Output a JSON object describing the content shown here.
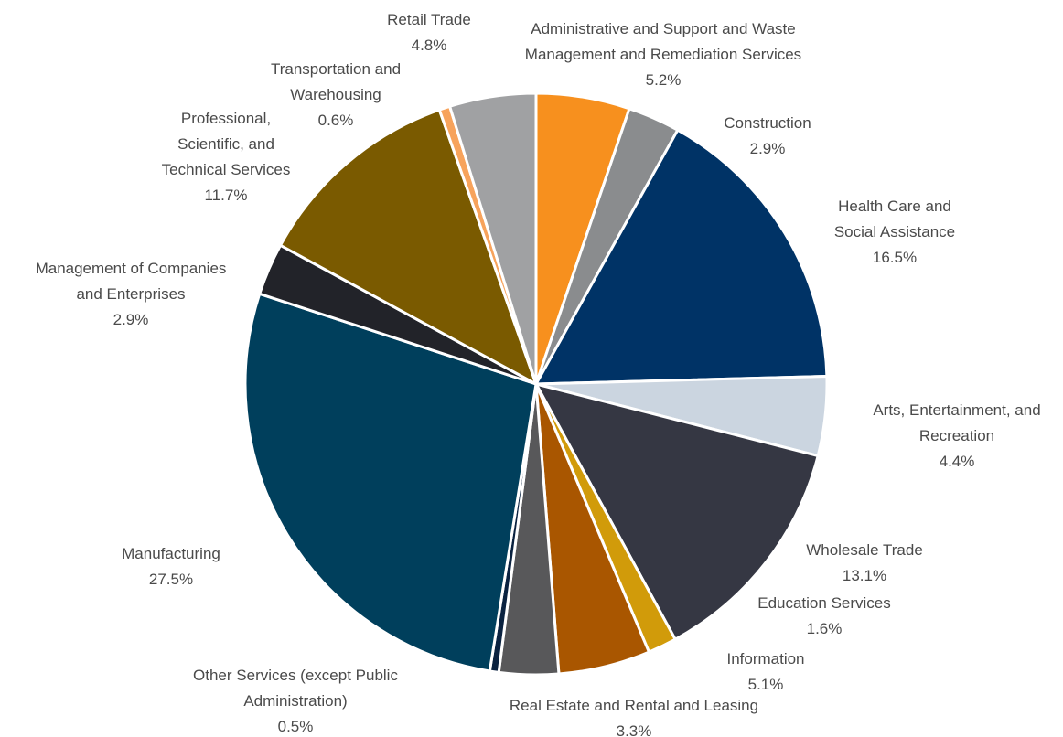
{
  "chart_data": {
    "type": "pie",
    "title": "",
    "slices": [
      {
        "label_lines": [
          "Administrative and Support and Waste",
          "Management and Remediation Services"
        ],
        "value_text": "5.2%",
        "value": 5.2,
        "color": "#F7901E"
      },
      {
        "label_lines": [
          "Construction"
        ],
        "value_text": "2.9%",
        "value": 2.9,
        "color": "#8A8C8E"
      },
      {
        "label_lines": [
          "Health Care and",
          "Social Assistance"
        ],
        "value_text": "16.5%",
        "value": 16.5,
        "color": "#003366"
      },
      {
        "label_lines": [
          "Arts, Entertainment, and",
          "Recreation"
        ],
        "value_text": "4.4%",
        "value": 4.4,
        "color": "#CBD5E0"
      },
      {
        "label_lines": [
          "Wholesale Trade"
        ],
        "value_text": "13.1%",
        "value": 13.1,
        "color": "#353743"
      },
      {
        "label_lines": [
          "Education Services"
        ],
        "value_text": "1.6%",
        "value": 1.6,
        "color": "#D19B0A"
      },
      {
        "label_lines": [
          "Information"
        ],
        "value_text": "5.1%",
        "value": 5.1,
        "color": "#A95600"
      },
      {
        "label_lines": [
          "Real Estate and Rental and Leasing"
        ],
        "value_text": "3.3%",
        "value": 3.3,
        "color": "#58585A"
      },
      {
        "label_lines": [
          "Other Services (except Public",
          "Administration)"
        ],
        "value_text": "0.5%",
        "value": 0.5,
        "color": "#0A2240"
      },
      {
        "label_lines": [
          "Manufacturing"
        ],
        "value_text": "27.5%",
        "value": 27.5,
        "color": "#003F5C"
      },
      {
        "label_lines": [
          "Management of Companies",
          "and Enterprises"
        ],
        "value_text": "2.9%",
        "value": 2.9,
        "color": "#222329"
      },
      {
        "label_lines": [
          "Professional,",
          "Scientific, and",
          "Technical Services"
        ],
        "value_text": "11.7%",
        "value": 11.7,
        "color": "#7A5A00"
      },
      {
        "label_lines": [
          "Transportation and",
          "Warehousing"
        ],
        "value_text": "0.6%",
        "value": 0.6,
        "color": "#F7A35C"
      },
      {
        "label_lines": [
          "Retail Trade"
        ],
        "value_text": "4.8%",
        "value": 4.8,
        "color": "#A0A1A3"
      }
    ]
  }
}
